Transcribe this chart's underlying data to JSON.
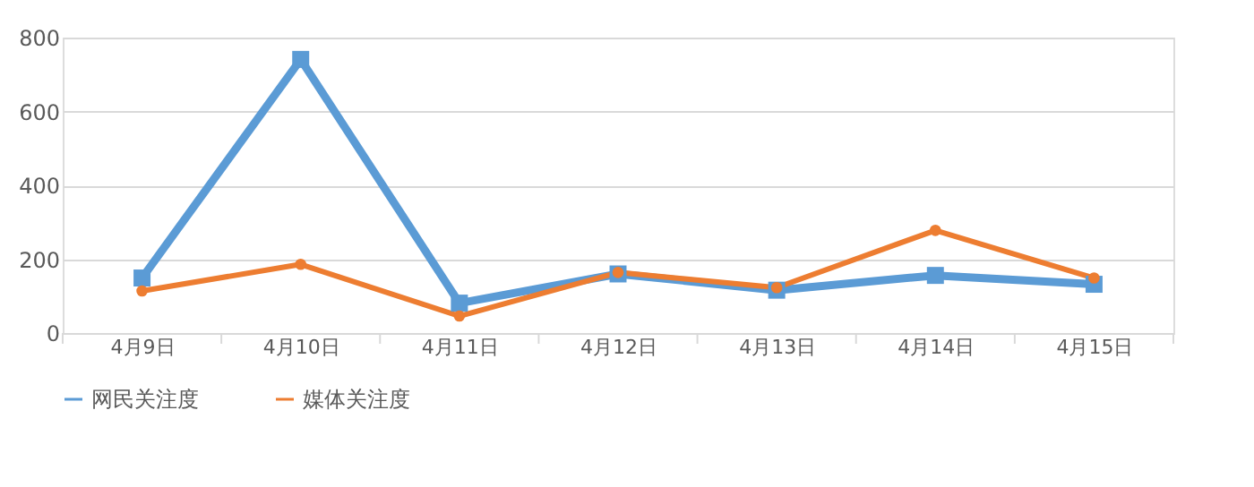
{
  "chart_data": {
    "type": "line",
    "categories": [
      "4月9日",
      "4月10日",
      "4月11日",
      "4月12日",
      "4月13日",
      "4月14日",
      "4月15日"
    ],
    "series": [
      {
        "name": "网民关注度",
        "color": "#5b9bd5",
        "marker": "square",
        "values": [
          149,
          741,
          81,
          160,
          116,
          156,
          132
        ]
      },
      {
        "name": "媒体关注度",
        "color": "#ed7d31",
        "marker": "circle",
        "values": [
          114,
          186,
          46,
          164,
          123,
          278,
          149
        ]
      }
    ],
    "ylim": [
      0,
      800
    ],
    "yticks": [
      0,
      200,
      400,
      600,
      800
    ],
    "grid": "y",
    "legend": "bottom",
    "line_style": "solid"
  }
}
